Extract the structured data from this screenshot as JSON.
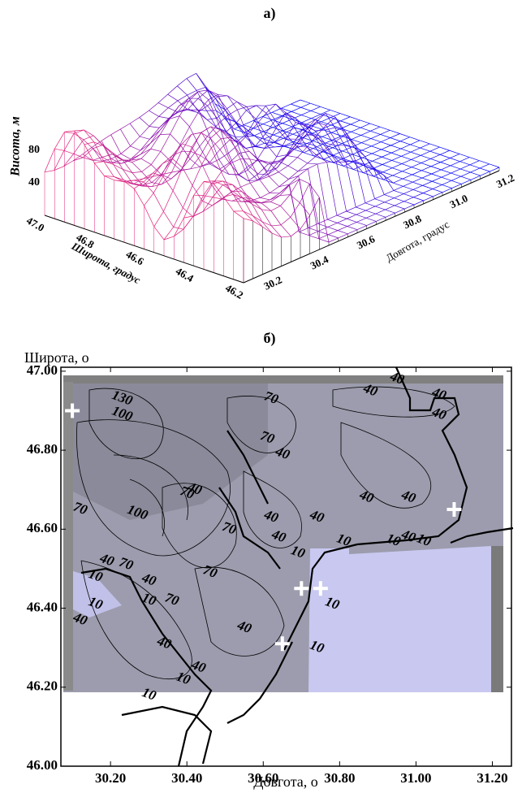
{
  "chart_data": [
    {
      "type": "surface",
      "panel_label": "а)",
      "z_label": "Висота, м",
      "y_label": "Широта, градус",
      "x_label": "Довгота, градус",
      "yticks": [
        {
          "value": 47.0,
          "label": "47.0"
        },
        {
          "value": 46.8,
          "label": "46.8"
        },
        {
          "value": 46.6,
          "label": "46.6"
        },
        {
          "value": 46.4,
          "label": "46.4"
        },
        {
          "value": 46.2,
          "label": "46.2"
        }
      ],
      "xticks": [
        {
          "value": 30.2,
          "label": "30.2"
        },
        {
          "value": 30.4,
          "label": "30.4"
        },
        {
          "value": 30.6,
          "label": "30.6"
        },
        {
          "value": 30.8,
          "label": "30.8"
        },
        {
          "value": 31.0,
          "label": "31.0"
        },
        {
          "value": 31.2,
          "label": "31.2"
        }
      ],
      "zticks": [
        40,
        80
      ]
    },
    {
      "type": "contour",
      "panel_label": "б)",
      "y_label": "Широта, o",
      "x_label": "Довгота, o",
      "xlim": [
        30.07,
        31.25
      ],
      "ylim": [
        46.0,
        47.01
      ],
      "xticks": [
        {
          "value": 30.2,
          "label": "30.20"
        },
        {
          "value": 30.4,
          "label": "30.40"
        },
        {
          "value": 30.6,
          "label": "30.60"
        },
        {
          "value": 30.8,
          "label": "30.80"
        },
        {
          "value": 31.0,
          "label": "31.00"
        },
        {
          "value": 31.2,
          "label": "31.20"
        }
      ],
      "yticks": [
        {
          "value": 46.0,
          "label": "46.00"
        },
        {
          "value": 46.2,
          "label": "46.20"
        },
        {
          "value": 46.4,
          "label": "46.40"
        },
        {
          "value": 46.6,
          "label": "46.60"
        },
        {
          "value": 46.8,
          "label": "46.80"
        },
        {
          "value": 47.0,
          "label": "47.00"
        }
      ],
      "markers": {
        "x": [
          30.1,
          31.1,
          30.7,
          30.75,
          30.65
        ],
        "y": [
          46.9,
          46.65,
          46.45,
          46.45,
          46.31
        ],
        "color": "#ffffff"
      },
      "contour_labels": [
        {
          "text": "130",
          "x": 30.23,
          "y": 46.93
        },
        {
          "text": "100",
          "x": 30.23,
          "y": 46.89
        },
        {
          "text": "70",
          "x": 30.62,
          "y": 46.93
        },
        {
          "text": "40",
          "x": 30.88,
          "y": 46.95
        },
        {
          "text": "40",
          "x": 30.95,
          "y": 46.98
        },
        {
          "text": "40",
          "x": 31.06,
          "y": 46.94
        },
        {
          "text": "40",
          "x": 31.06,
          "y": 46.89
        },
        {
          "text": "70",
          "x": 30.61,
          "y": 46.83
        },
        {
          "text": "40",
          "x": 30.65,
          "y": 46.79
        },
        {
          "text": "70",
          "x": 30.4,
          "y": 46.69
        },
        {
          "text": "40",
          "x": 30.42,
          "y": 46.7
        },
        {
          "text": "70",
          "x": 30.12,
          "y": 46.65
        },
        {
          "text": "100",
          "x": 30.27,
          "y": 46.64
        },
        {
          "text": "40",
          "x": 30.62,
          "y": 46.63
        },
        {
          "text": "40",
          "x": 30.74,
          "y": 46.63
        },
        {
          "text": "40",
          "x": 30.87,
          "y": 46.68
        },
        {
          "text": "40",
          "x": 30.98,
          "y": 46.68
        },
        {
          "text": "70",
          "x": 30.51,
          "y": 46.6
        },
        {
          "text": "40",
          "x": 30.64,
          "y": 46.58
        },
        {
          "text": "40",
          "x": 30.98,
          "y": 46.58
        },
        {
          "text": "10",
          "x": 30.81,
          "y": 46.57
        },
        {
          "text": "10",
          "x": 30.94,
          "y": 46.57
        },
        {
          "text": "10",
          "x": 31.02,
          "y": 46.57
        },
        {
          "text": "10",
          "x": 30.69,
          "y": 46.54
        },
        {
          "text": "40",
          "x": 30.19,
          "y": 46.52
        },
        {
          "text": "70",
          "x": 30.24,
          "y": 46.51
        },
        {
          "text": "10",
          "x": 30.16,
          "y": 46.48
        },
        {
          "text": "40",
          "x": 30.3,
          "y": 46.47
        },
        {
          "text": "70",
          "x": 30.46,
          "y": 46.49
        },
        {
          "text": "10",
          "x": 30.3,
          "y": 46.42
        },
        {
          "text": "70",
          "x": 30.36,
          "y": 46.42
        },
        {
          "text": "10",
          "x": 30.16,
          "y": 46.41
        },
        {
          "text": "10",
          "x": 30.78,
          "y": 46.41
        },
        {
          "text": "40",
          "x": 30.55,
          "y": 46.35
        },
        {
          "text": "40",
          "x": 30.12,
          "y": 46.37
        },
        {
          "text": "40",
          "x": 30.34,
          "y": 46.31
        },
        {
          "text": "10",
          "x": 30.74,
          "y": 46.3
        },
        {
          "text": "40",
          "x": 30.43,
          "y": 46.25
        },
        {
          "text": "10",
          "x": 30.39,
          "y": 46.22
        },
        {
          "text": "10",
          "x": 30.3,
          "y": 46.18
        }
      ]
    }
  ]
}
